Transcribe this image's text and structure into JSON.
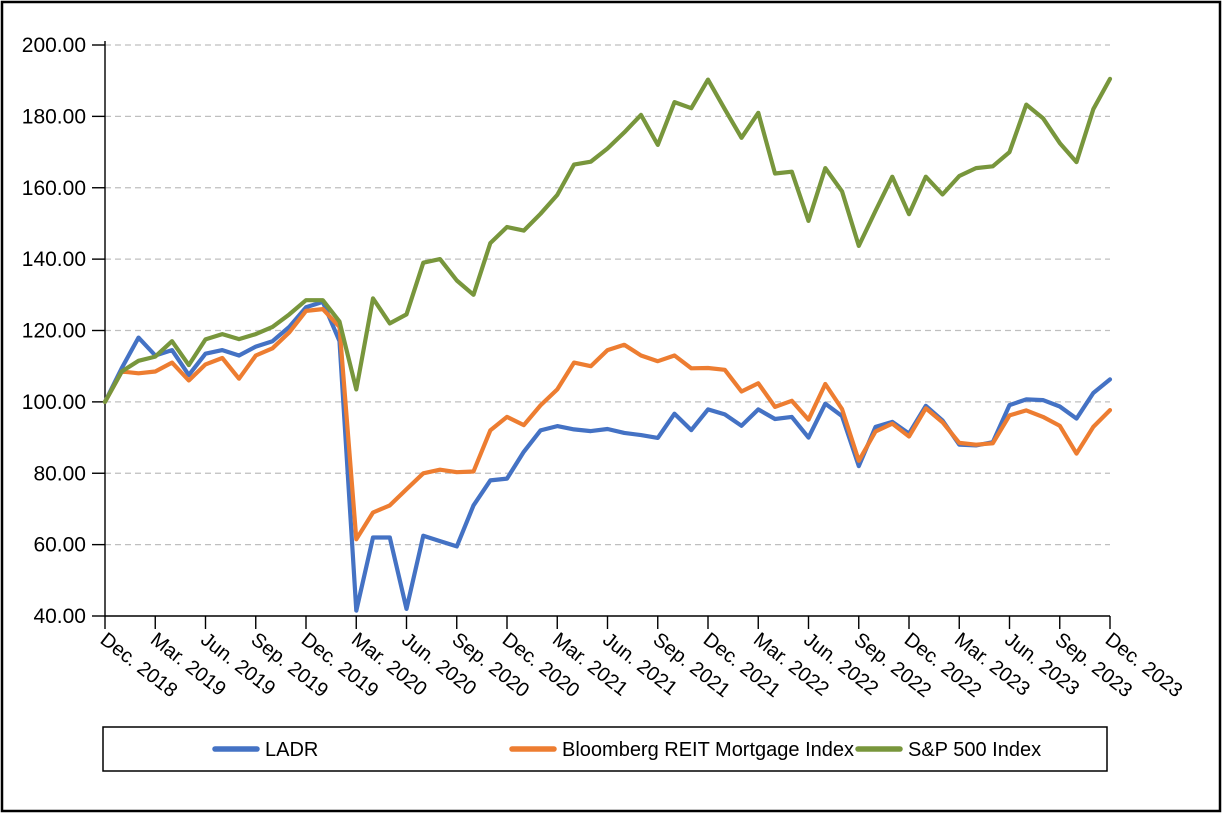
{
  "chart_data": {
    "type": "line",
    "title": "",
    "xlabel": "",
    "ylabel": "",
    "grid": "horizontal-dashed",
    "legend_position": "bottom",
    "background_color": "#ffffff",
    "border_color": "#000000",
    "gridline_color": "#bfbfbf",
    "axis_color": "#000000",
    "x_axis": {
      "unit": "month",
      "n_points": 61,
      "first_point": "Dec. 2018",
      "last_point": "Dec. 2023",
      "tick_every_points": 3,
      "tick_labels": [
        "Dec. 2018",
        "Mar. 2019",
        "Jun. 2019",
        "Sep. 2019",
        "Dec. 2019",
        "Mar. 2020",
        "Jun. 2020",
        "Sep. 2020",
        "Dec. 2020",
        "Mar. 2021",
        "Jun. 2021",
        "Sep. 2021",
        "Dec. 2021",
        "Mar. 2022",
        "Jun. 2022",
        "Sep. 2022",
        "Dec. 2022",
        "Mar. 2023",
        "Jun. 2023",
        "Sep. 2023",
        "Dec. 2023"
      ],
      "label_rotation_deg": 38
    },
    "y_axis": {
      "min": 40,
      "max": 200,
      "step": 20,
      "tick_labels": [
        "40.00",
        "60.00",
        "80.00",
        "100.00",
        "120.00",
        "140.00",
        "160.00",
        "180.00",
        "200.00"
      ]
    },
    "series": [
      {
        "name": "LADR",
        "color": "#4472C4",
        "values": [
          100,
          109.5,
          118,
          113,
          114.5,
          107.5,
          113.5,
          114.5,
          113,
          115.5,
          117,
          121,
          126.5,
          128,
          117,
          41.5,
          62,
          62,
          42,
          62.5,
          61,
          59.5,
          71,
          78,
          78.5,
          86,
          92,
          93.2,
          92.3,
          91.8,
          92.4,
          91.3,
          90.7,
          89.9,
          96.7,
          92.1,
          97.9,
          96.5,
          93.3,
          97.9,
          95.2,
          95.8,
          90,
          99.5,
          96,
          82,
          93,
          94.4,
          91.1,
          98.9,
          94.8,
          88,
          87.8,
          88.7,
          99.1,
          100.7,
          100.5,
          98.7,
          95.3,
          102.5,
          106.3
        ]
      },
      {
        "name": "Bloomberg REIT Mortgage Index",
        "color": "#ED7D31",
        "values": [
          100,
          108.5,
          108,
          108.5,
          111,
          106,
          110.5,
          112.3,
          106.5,
          113,
          115,
          119.5,
          125.5,
          126,
          121,
          61.5,
          69,
          71,
          75.5,
          80,
          81,
          80.3,
          80.5,
          92,
          95.8,
          93.5,
          99,
          103.5,
          111,
          110,
          114.5,
          116,
          113,
          111.4,
          113,
          109.4,
          109.5,
          109,
          102.9,
          105.2,
          98.6,
          100.3,
          95,
          105,
          98,
          83.5,
          91.7,
          93.9,
          90.3,
          98.2,
          94.3,
          88.5,
          88,
          88.4,
          96.2,
          97.6,
          95.8,
          93.3,
          85.5,
          93,
          97.7
        ]
      },
      {
        "name": "S&P 500 Index",
        "color": "#78963C",
        "values": [
          100,
          108.5,
          111.5,
          112.7,
          117,
          110.3,
          117.5,
          119,
          117.6,
          119,
          121,
          124.5,
          128.5,
          128.5,
          122.5,
          103.5,
          129,
          122,
          124.5,
          139,
          140,
          134,
          130,
          144.5,
          149,
          148,
          152.7,
          158,
          166.5,
          167.3,
          171,
          175.5,
          180.4,
          172,
          184,
          182.3,
          190.3,
          182,
          174,
          181,
          164,
          164.5,
          150.7,
          165.5,
          159,
          143.7,
          153.5,
          163.1,
          152.6,
          163.1,
          158.1,
          163.3,
          165.5,
          166,
          170,
          183.3,
          179.5,
          172.5,
          167.2,
          182,
          190.5
        ]
      }
    ],
    "legend": {
      "items": [
        {
          "label": "LADR",
          "color": "#4472C4"
        },
        {
          "label": "Bloomberg REIT Mortgage Index",
          "color": "#ED7D31"
        },
        {
          "label": "S&P 500 Index",
          "color": "#78963C"
        }
      ]
    }
  }
}
